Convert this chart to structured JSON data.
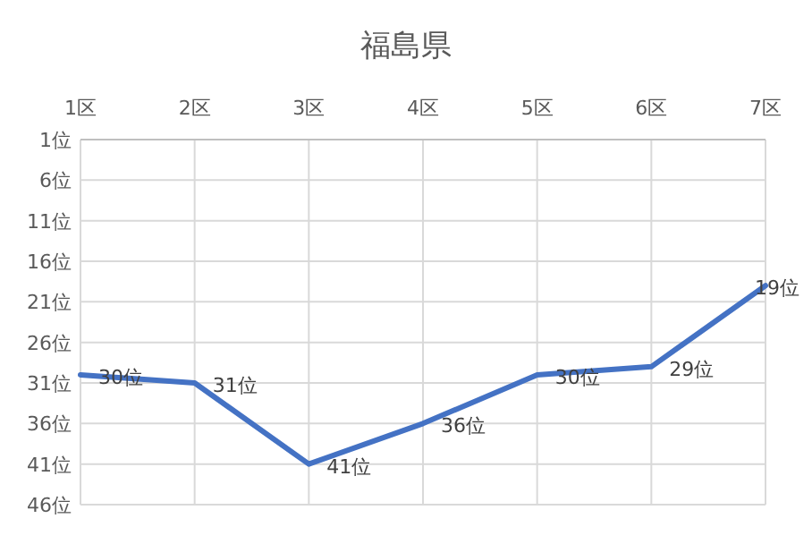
{
  "chart_data": {
    "type": "line",
    "title": "福島県",
    "categories": [
      "1区",
      "2区",
      "3区",
      "4区",
      "5区",
      "6区",
      "7区"
    ],
    "series": [
      {
        "color": "#4472c4",
        "values": [
          30,
          31,
          41,
          36,
          30,
          29,
          19
        ],
        "value_labels": [
          "30位",
          "31位",
          "41位",
          "36位",
          "30位",
          "29位",
          "19位"
        ]
      }
    ],
    "ylim": [
      46,
      1
    ],
    "yticks": [
      {
        "value": 1,
        "label": "1位"
      },
      {
        "value": 6,
        "label": "6位"
      },
      {
        "value": 11,
        "label": "11位"
      },
      {
        "value": 16,
        "label": "16位"
      },
      {
        "value": 21,
        "label": "21位"
      },
      {
        "value": 26,
        "label": "26位"
      },
      {
        "value": 31,
        "label": "31位"
      },
      {
        "value": 36,
        "label": "36位"
      },
      {
        "value": 41,
        "label": "41位"
      },
      {
        "value": 46,
        "label": "46位"
      }
    ],
    "grid": true,
    "marker": "none",
    "line_style": "solid"
  }
}
